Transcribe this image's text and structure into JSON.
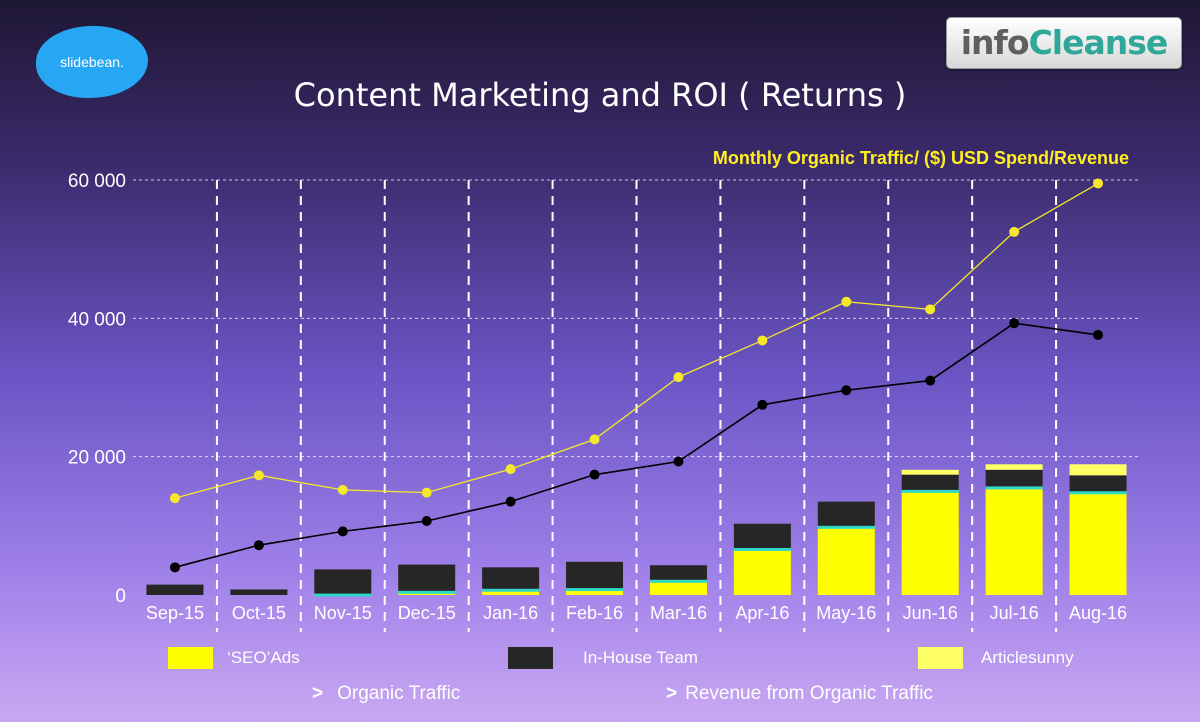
{
  "logos": {
    "slidebean": "slidebean.",
    "infocleanse_part1": "info",
    "infocleanse_part2": "Cleanse"
  },
  "colors": {
    "seo_ads": "#ffff00",
    "in_house": "#262626",
    "articlesunny": "#ffff66",
    "cap": "#2fd8c8",
    "organic_traffic": "#f5e82a",
    "revenue": "#000000",
    "grid": "#ffffff"
  },
  "chart_data": {
    "type": "bar",
    "title": "Content Marketing and ROI ( Returns )",
    "subtitle": "Monthly Organic Traffic/ ($) USD Spend/Revenue",
    "categories": [
      "Sep-15",
      "Oct-15",
      "Nov-15",
      "Dec-15",
      "Jan-16",
      "Feb-16",
      "Mar-16",
      "Apr-16",
      "May-16",
      "Jun-16",
      "Jul-16",
      "Aug-16"
    ],
    "ylim": [
      0,
      60000
    ],
    "yticks": [
      0,
      20000,
      40000,
      60000
    ],
    "ytick_labels": [
      "0",
      "20 000",
      "40 000",
      "60 000"
    ],
    "grid": true,
    "stacked_series": [
      {
        "name": "‘SEO’Ads",
        "values": [
          0,
          0,
          200,
          600,
          900,
          1000,
          2200,
          6800,
          10000,
          15200,
          15700,
          15000
        ]
      },
      {
        "name": "In-House Team",
        "values": [
          1500,
          800,
          3500,
          3800,
          3100,
          3800,
          2100,
          3500,
          3500,
          2200,
          2400,
          2300
        ]
      },
      {
        "name": "Articlesunny",
        "values": [
          0,
          0,
          0,
          0,
          0,
          0,
          0,
          0,
          0,
          700,
          800,
          1600
        ]
      }
    ],
    "line_series": [
      {
        "name": "Organic Traffic",
        "values": [
          14000,
          17300,
          15200,
          14800,
          18200,
          22500,
          31500,
          36800,
          42400,
          41300,
          52500,
          59500
        ]
      },
      {
        "name": "Revenue from Organic Traffic",
        "values": [
          4000,
          7200,
          9200,
          10700,
          13500,
          17400,
          19300,
          27500,
          29600,
          31000,
          39300,
          37600
        ]
      }
    ],
    "legend": {
      "position": "bottom",
      "bars": [
        "‘SEO’Ads",
        "In-House Team",
        "Articlesunny"
      ],
      "lines": [
        "Organic Traffic",
        "Revenue from Organic Traffic"
      ],
      "marker": ">"
    }
  }
}
